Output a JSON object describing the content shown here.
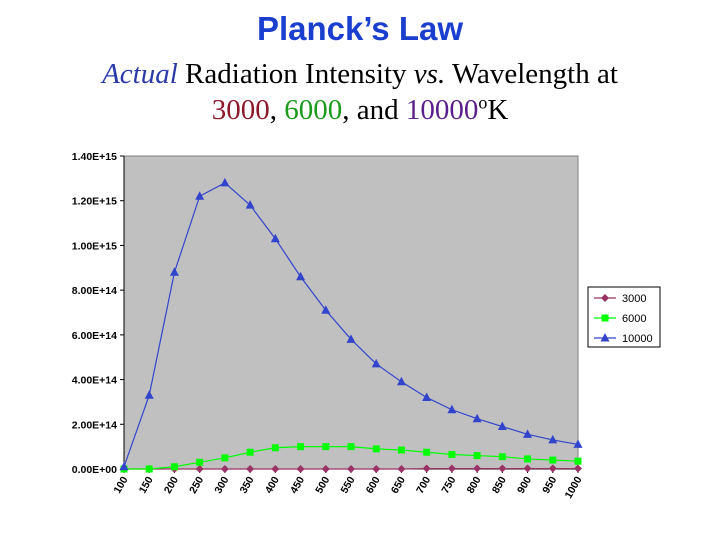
{
  "title": "Planck’s Law",
  "subtitle": {
    "actual": "Actual",
    "part1": " Radiation Intensity ",
    "vs": "vs.",
    "part2": " Wavelength at",
    "t3000": "3000",
    "comma1": ", ",
    "t6000": "6000",
    "and": ", and ",
    "t10000": "10000",
    "deg": "o",
    "unit": "K"
  },
  "colors": {
    "plot_bg": "#c0c0c0",
    "s3000": "#993366",
    "s6000": "#00ff00",
    "s10000": "#3344cc"
  },
  "chart_data": {
    "type": "line",
    "x": [
      100,
      150,
      200,
      250,
      300,
      350,
      400,
      450,
      500,
      550,
      600,
      650,
      700,
      750,
      800,
      850,
      900,
      950,
      1000
    ],
    "ylim": [
      0,
      1400000000000000.0
    ],
    "yticks": [
      "0.00E+00",
      "2.00E+14",
      "4.00E+14",
      "6.00E+14",
      "8.00E+14",
      "1.00E+15",
      "1.20E+15",
      "1.40E+15"
    ],
    "ytick_values": [
      0,
      200000000000000.0,
      400000000000000.0,
      600000000000000.0,
      800000000000000.0,
      1000000000000000.0,
      1200000000000000.0,
      1400000000000000.0
    ],
    "grid": false,
    "legend_position": "right",
    "series": [
      {
        "name": "3000",
        "marker": "diamond",
        "values": [
          0,
          0,
          0,
          0,
          0,
          0,
          0,
          0,
          0,
          0,
          0,
          0,
          2000000000000.0,
          2000000000000.0,
          2000000000000.0,
          2000000000000.0,
          2000000000000.0,
          2000000000000.0,
          2000000000000.0
        ]
      },
      {
        "name": "6000",
        "marker": "square",
        "values": [
          0,
          0,
          10000000000000.0,
          30000000000000.0,
          50000000000000.0,
          75000000000000.0,
          95000000000000.0,
          100000000000000.0,
          100000000000000.0,
          100000000000000.0,
          90000000000000.0,
          85000000000000.0,
          75000000000000.0,
          65000000000000.0,
          60000000000000.0,
          55000000000000.0,
          45000000000000.0,
          40000000000000.0,
          35000000000000.0
        ]
      },
      {
        "name": "10000",
        "marker": "triangle",
        "values": [
          10000000000000.0,
          330000000000000.0,
          880000000000000.0,
          1220000000000000.0,
          1280000000000000.0,
          1180000000000000.0,
          1030000000000000.0,
          860000000000000.0,
          710000000000000.0,
          580000000000000.0,
          470000000000000.0,
          390000000000000.0,
          320000000000000.0,
          265000000000000.0,
          225000000000000.0,
          190000000000000.0,
          155000000000000.0,
          130000000000000.0,
          110000000000000.0
        ]
      }
    ]
  }
}
